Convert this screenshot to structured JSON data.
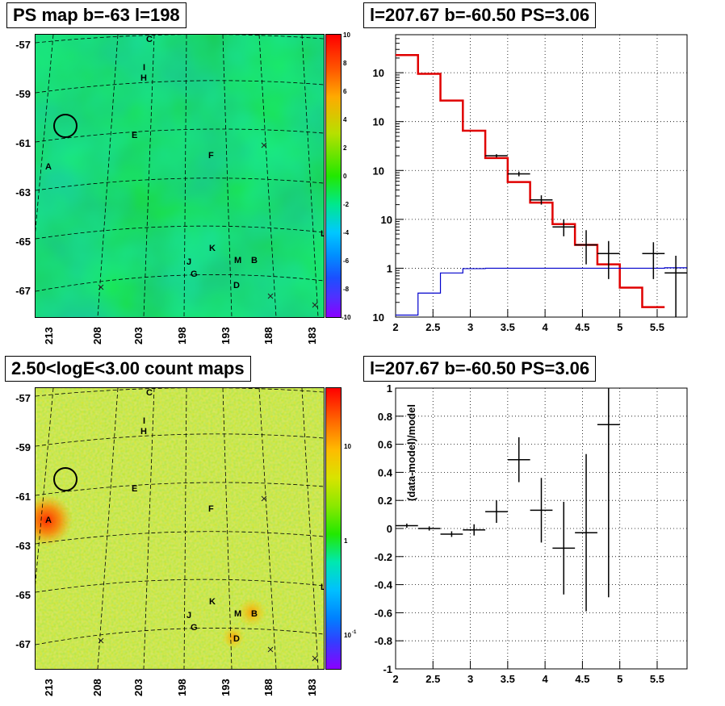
{
  "panels": {
    "top_left_title": "PS map b=-63 l=198",
    "top_right_title": "l=207.67 b=-60.50 PS=3.06",
    "bottom_left_title": "2.50<logE<3.00 count maps",
    "bottom_right_title": "l=207.67 b=-60.50 PS=3.06"
  },
  "maps": {
    "lat_ticks": [
      "-57",
      "-59",
      "-61",
      "-63",
      "-65",
      "-67"
    ],
    "lon_ticks": [
      "213",
      "208",
      "203",
      "198",
      "193",
      "188",
      "183"
    ],
    "source_labels": [
      "A",
      "B",
      "C",
      "D",
      "E",
      "F",
      "G",
      "H",
      "I",
      "J",
      "K",
      "L",
      "M"
    ],
    "colorbar_top_ticks": [
      "10",
      "8",
      "6",
      "4",
      "2",
      "0",
      "-2",
      "-4",
      "-6",
      "-8",
      "-10"
    ],
    "colorbar_bottom_ticks": [
      "10",
      "1",
      "10"
    ],
    "colorbar_bottom_exp": "-1"
  },
  "colors": {
    "data": "#000000",
    "model": "#e00000",
    "background_model": "#0000cc",
    "grid": "#000000"
  },
  "chart_data": [
    {
      "type": "line",
      "title": "l=207.67 b=-60.50 PS=3.06",
      "xlabel": "",
      "ylabel": "",
      "xlim": [
        2,
        5.9
      ],
      "ylim": [
        0.1,
        60000
      ],
      "y_scale": "log",
      "grid": true,
      "x_ticks": [
        "2",
        "2.5",
        "3",
        "3.5",
        "4",
        "4.5",
        "5",
        "5.5"
      ],
      "y_ticks": [
        "10^-1",
        "1",
        "10",
        "10^2",
        "10^3",
        "10^4"
      ],
      "series": [
        {
          "kind": "step",
          "color": "red",
          "edges": [
            2,
            2.3,
            2.6,
            2.9,
            3.2,
            3.5,
            3.8,
            4.1,
            4.4,
            4.7,
            5.0,
            5.3,
            5.6
          ],
          "values": [
            23000,
            9500,
            2700,
            650,
            180,
            58,
            22,
            8,
            3,
            1.2,
            0.4,
            0.16
          ]
        },
        {
          "kind": "step",
          "color": "blue",
          "edges": [
            2,
            2.3,
            2.6,
            2.9,
            3.2,
            3.5,
            3.8,
            4.1,
            4.4,
            4.7,
            5.0,
            5.3,
            5.6,
            5.9
          ],
          "values": [
            0.11,
            0.31,
            0.8,
            0.98,
            1.0,
            1.0,
            1.0,
            1.0,
            1.0,
            1.0,
            1.0,
            1.0,
            1.02
          ]
        },
        {
          "kind": "errorbar",
          "color": "black",
          "x": [
            3.35,
            3.65,
            3.95,
            4.25,
            4.55,
            4.85,
            5.45,
            5.75
          ],
          "y": [
            200,
            85,
            25,
            7,
            3,
            2,
            2,
            0.8
          ],
          "y_low": [
            185,
            76,
            20,
            4.5,
            1.2,
            0.6,
            0.6,
            0.1
          ],
          "y_high": [
            215,
            95,
            31,
            10,
            6,
            3.6,
            3.4,
            1.8
          ],
          "x_half_width": 0.15
        }
      ]
    },
    {
      "type": "scatter",
      "title": "l=207.67 b=-60.50 PS=3.06",
      "xlabel": "",
      "ylabel": "(data-model)/model",
      "xlim": [
        2,
        5.9
      ],
      "ylim": [
        -1,
        1
      ],
      "grid": true,
      "x_ticks": [
        "2",
        "2.5",
        "3",
        "3.5",
        "4",
        "4.5",
        "5",
        "5.5"
      ],
      "y_ticks": [
        "-1",
        "-0.8",
        "-0.6",
        "-0.4",
        "-0.2",
        "0",
        "0.2",
        "0.4",
        "0.6",
        "0.8",
        "1"
      ],
      "series": [
        {
          "kind": "errorbar",
          "color": "black",
          "x": [
            2.15,
            2.45,
            2.75,
            3.05,
            3.35,
            3.65,
            3.95,
            4.25,
            4.55,
            4.85
          ],
          "y": [
            0.02,
            0.0,
            -0.04,
            -0.01,
            0.12,
            0.49,
            0.13,
            -0.14,
            -0.03,
            0.74
          ],
          "err": [
            0.015,
            0.015,
            0.02,
            0.04,
            0.08,
            0.16,
            0.23,
            0.33,
            0.56,
            1.23
          ],
          "x_half_width": 0.15
        }
      ]
    }
  ]
}
